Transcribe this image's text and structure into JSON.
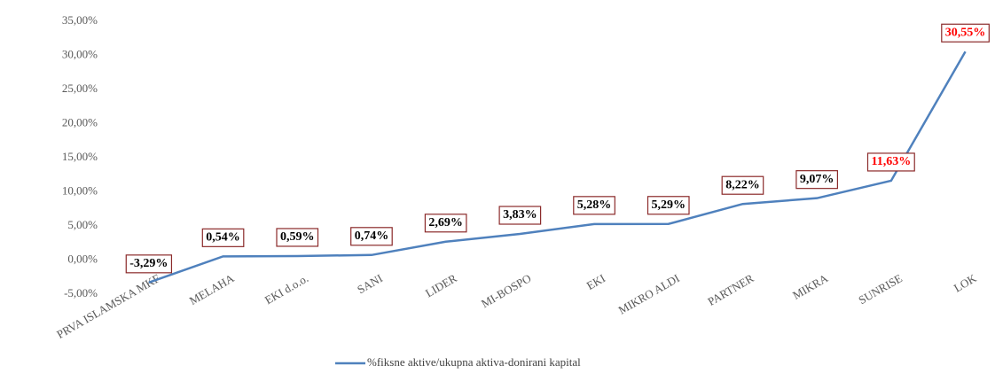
{
  "chart_data": {
    "type": "line",
    "categories": [
      "PRVA ISLAMSKA MKF",
      "MELAHA",
      "EKI d.o.o.",
      "SANI",
      "LIDER",
      "MI-BOSPO",
      "EKI",
      "MIKRO ALDI",
      "PARTNER",
      "MIKRA",
      "SUNRISE",
      "LOK"
    ],
    "series": [
      {
        "name": "%fiksne aktive/ukupna aktiva-donirani kapital",
        "color": "#4f81bd",
        "values": [
          -3.29,
          0.54,
          0.59,
          0.74,
          2.69,
          3.83,
          5.28,
          5.29,
          8.22,
          9.07,
          11.63,
          30.55
        ],
        "value_labels": [
          "-3,29%",
          "0,54%",
          "0,59%",
          "0,74%",
          "2,69%",
          "3,83%",
          "5,28%",
          "5,29%",
          "8,22%",
          "9,07%",
          "11,63%",
          "30,55%"
        ],
        "value_label_colors": [
          "#000000",
          "#000000",
          "#000000",
          "#000000",
          "#000000",
          "#000000",
          "#000000",
          "#000000",
          "#000000",
          "#000000",
          "#ff0000",
          "#ff0000"
        ]
      }
    ],
    "ylim": [
      -5,
      35
    ],
    "yticks": [
      {
        "value": -5,
        "label": "-5,00%"
      },
      {
        "value": 0,
        "label": "0,00%"
      },
      {
        "value": 5,
        "label": "5,00%"
      },
      {
        "value": 10,
        "label": "10,00%"
      },
      {
        "value": 15,
        "label": "15,00%"
      },
      {
        "value": 20,
        "label": "20,00%"
      },
      {
        "value": 25,
        "label": "25,00%"
      },
      {
        "value": 30,
        "label": "30,00%"
      },
      {
        "value": 35,
        "label": "35,00%"
      }
    ],
    "grid": false,
    "legend": "bottom"
  }
}
